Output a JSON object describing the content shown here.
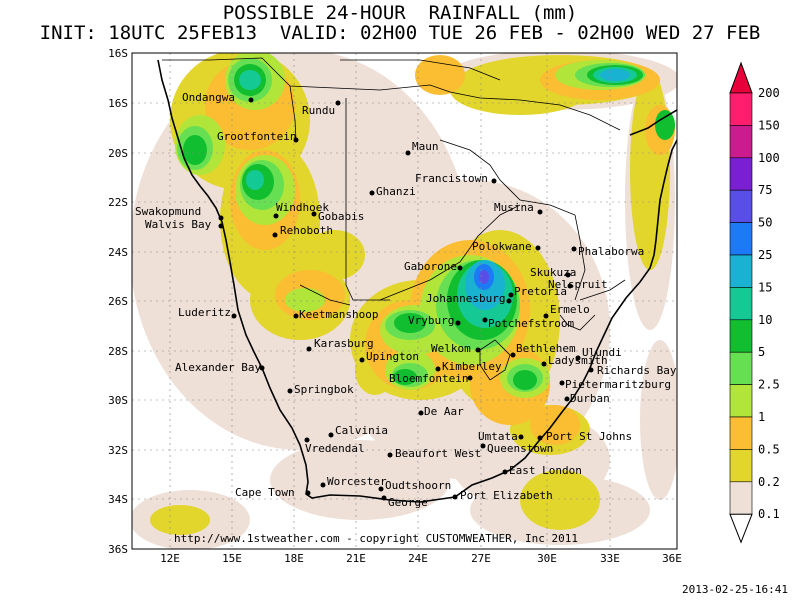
{
  "title_line1": "POSSIBLE 24-HOUR  RAINFALL (mm)",
  "title_line2": "INIT: 18UTC 25FEB13  VALID: 02H00 TUE 26 FEB - 02H00 WED 27 FEB",
  "credit": "http://www.1stweather.com - copyright CUSTOMWEATHER, Inc 2011",
  "timestamp": "2013-02-25-16:41",
  "lat_labels": [
    "16S",
    "16S",
    "20S",
    "22S",
    "24S",
    "26S",
    "28S",
    "30S",
    "32S",
    "34S",
    "36S"
  ],
  "lon_labels": [
    "12E",
    "15E",
    "18E",
    "21E",
    "24E",
    "27E",
    "30E",
    "33E",
    "36E"
  ],
  "legend": {
    "levels": [
      "200",
      "150",
      "100",
      "75",
      "50",
      "25",
      "15",
      "10",
      "5",
      "2.5",
      "1",
      "0.5",
      "0.2",
      "0.1"
    ],
    "colors": [
      "#e8003a",
      "#ff1e6e",
      "#cc1b8e",
      "#7a1fd3",
      "#5a4ee9",
      "#1d7af7",
      "#19b2d2",
      "#14c993",
      "#11be2f",
      "#66e052",
      "#b2e53a",
      "#fbbd32",
      "#e2d52c",
      "#eedfd7"
    ]
  },
  "cities": [
    "Ondangwa",
    "Rundu",
    "Grootfontein",
    "Maun",
    "Francistown",
    "Ghanzi",
    "Swakopmund",
    "Walvis Bay",
    "Windhoek",
    "Gobabis",
    "Rehoboth",
    "Musina",
    "Polokwane",
    "Phalaborwa",
    "Gaborone",
    "Skukuza",
    "Nelspruit",
    "Pretoria",
    "Johannesburg",
    "Ermelo",
    "Luderitz",
    "Keetmanshoop",
    "Vryburg",
    "Potchefstroom",
    "Karasburg",
    "Welkom",
    "Bethlehem",
    "Ulundi",
    "Upington",
    "Ladysmith",
    "Alexander Bay",
    "Kimberley",
    "Richards Bay",
    "Bloemfontein",
    "Pietermaritzburg",
    "Springbok",
    "Durban",
    "De Aar",
    "Calvinia",
    "Umtata",
    "Port St Johns",
    "Vredendal",
    "Queenstown",
    "Beaufort West",
    "East London",
    "Worcester",
    "Oudtshoorn",
    "Cape Town",
    "George",
    "Port Elizabeth"
  ]
}
